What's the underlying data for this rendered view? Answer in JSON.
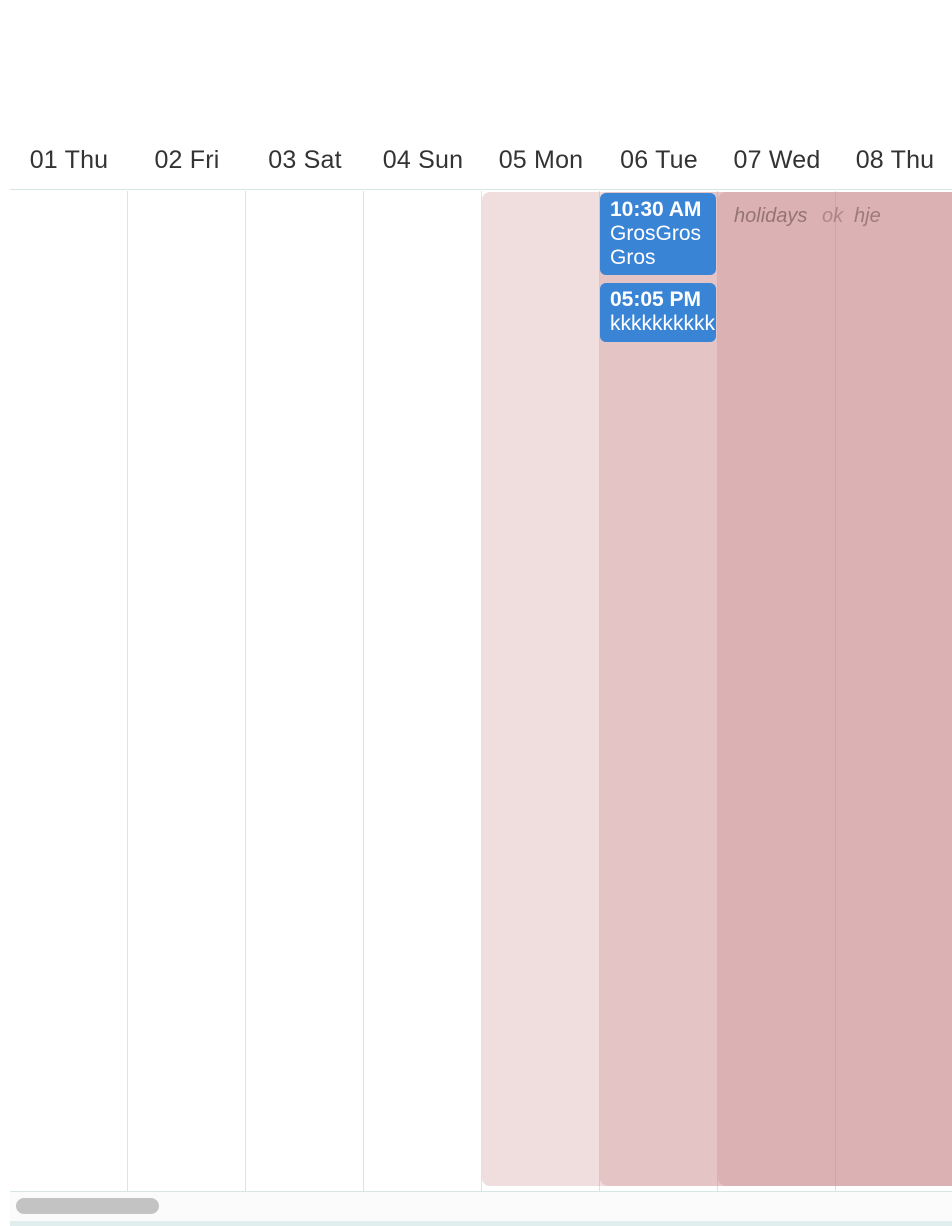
{
  "calendar": {
    "days": [
      {
        "label": "01 Thu"
      },
      {
        "label": "02 Fri"
      },
      {
        "label": "03 Sat"
      },
      {
        "label": "04 Sun"
      },
      {
        "label": "05 Mon"
      },
      {
        "label": "06 Tue"
      },
      {
        "label": "07 Wed"
      },
      {
        "label": "08 Thu"
      }
    ],
    "events": [
      {
        "time": "10:30 AM",
        "title": "GrosGros Gros"
      },
      {
        "time": "05:05 PM",
        "title": "kkkkkkkkkk"
      }
    ],
    "background_events": [
      {
        "label": "holidays",
        "color": "#c67c80"
      },
      {
        "label": "ok",
        "color": "#c67c80"
      },
      {
        "label": "hje",
        "color": "#c67c80"
      }
    ],
    "colors": {
      "event_blue": "#3a84d6",
      "holiday_light": "#efdcde",
      "holiday_mid": "#dcb3b5",
      "holiday_dark": "#d29193",
      "grid_line": "#d5e6e4"
    }
  }
}
